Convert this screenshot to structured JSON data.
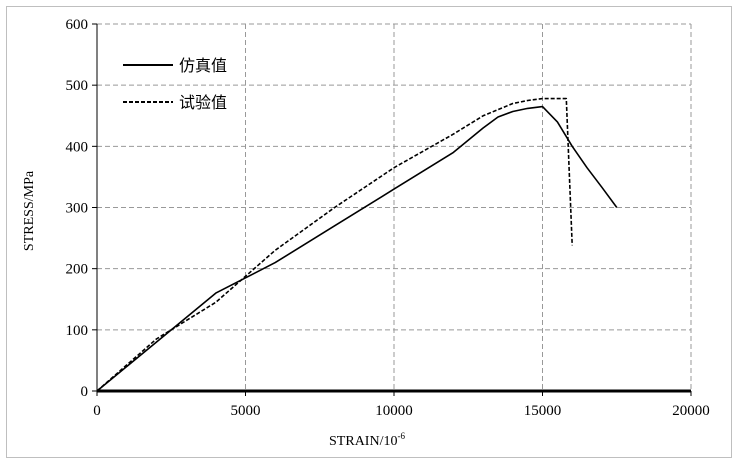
{
  "chart_data": {
    "type": "line",
    "title": "",
    "xlabel": "STRAIN/10",
    "xlabel_superscript": "-6",
    "ylabel": "STRESS/MPa",
    "xlim": [
      0,
      20000
    ],
    "ylim": [
      0,
      600
    ],
    "xticks": [
      0,
      5000,
      10000,
      15000,
      20000
    ],
    "yticks": [
      0,
      100,
      200,
      300,
      400,
      500,
      600
    ],
    "grid": true,
    "legend_position": "top-left",
    "series": [
      {
        "name": "仿真值",
        "style": "solid",
        "color": "#000000",
        "x": [
          0,
          2000,
          4000,
          6000,
          8000,
          10000,
          12000,
          13000,
          13500,
          14000,
          14500,
          15000,
          15500,
          16000,
          16500,
          17000,
          17500
        ],
        "y": [
          0,
          80,
          160,
          210,
          270,
          330,
          390,
          430,
          448,
          457,
          462,
          465,
          440,
          400,
          365,
          333,
          300
        ]
      },
      {
        "name": "试验值",
        "style": "dashed",
        "color": "#000000",
        "x": [
          0,
          2000,
          4000,
          6000,
          8000,
          10000,
          12000,
          13000,
          14000,
          14500,
          15000,
          15500,
          15800,
          16000
        ],
        "y": [
          0,
          85,
          145,
          230,
          300,
          365,
          420,
          450,
          470,
          475,
          478,
          478,
          478,
          238
        ]
      }
    ]
  }
}
